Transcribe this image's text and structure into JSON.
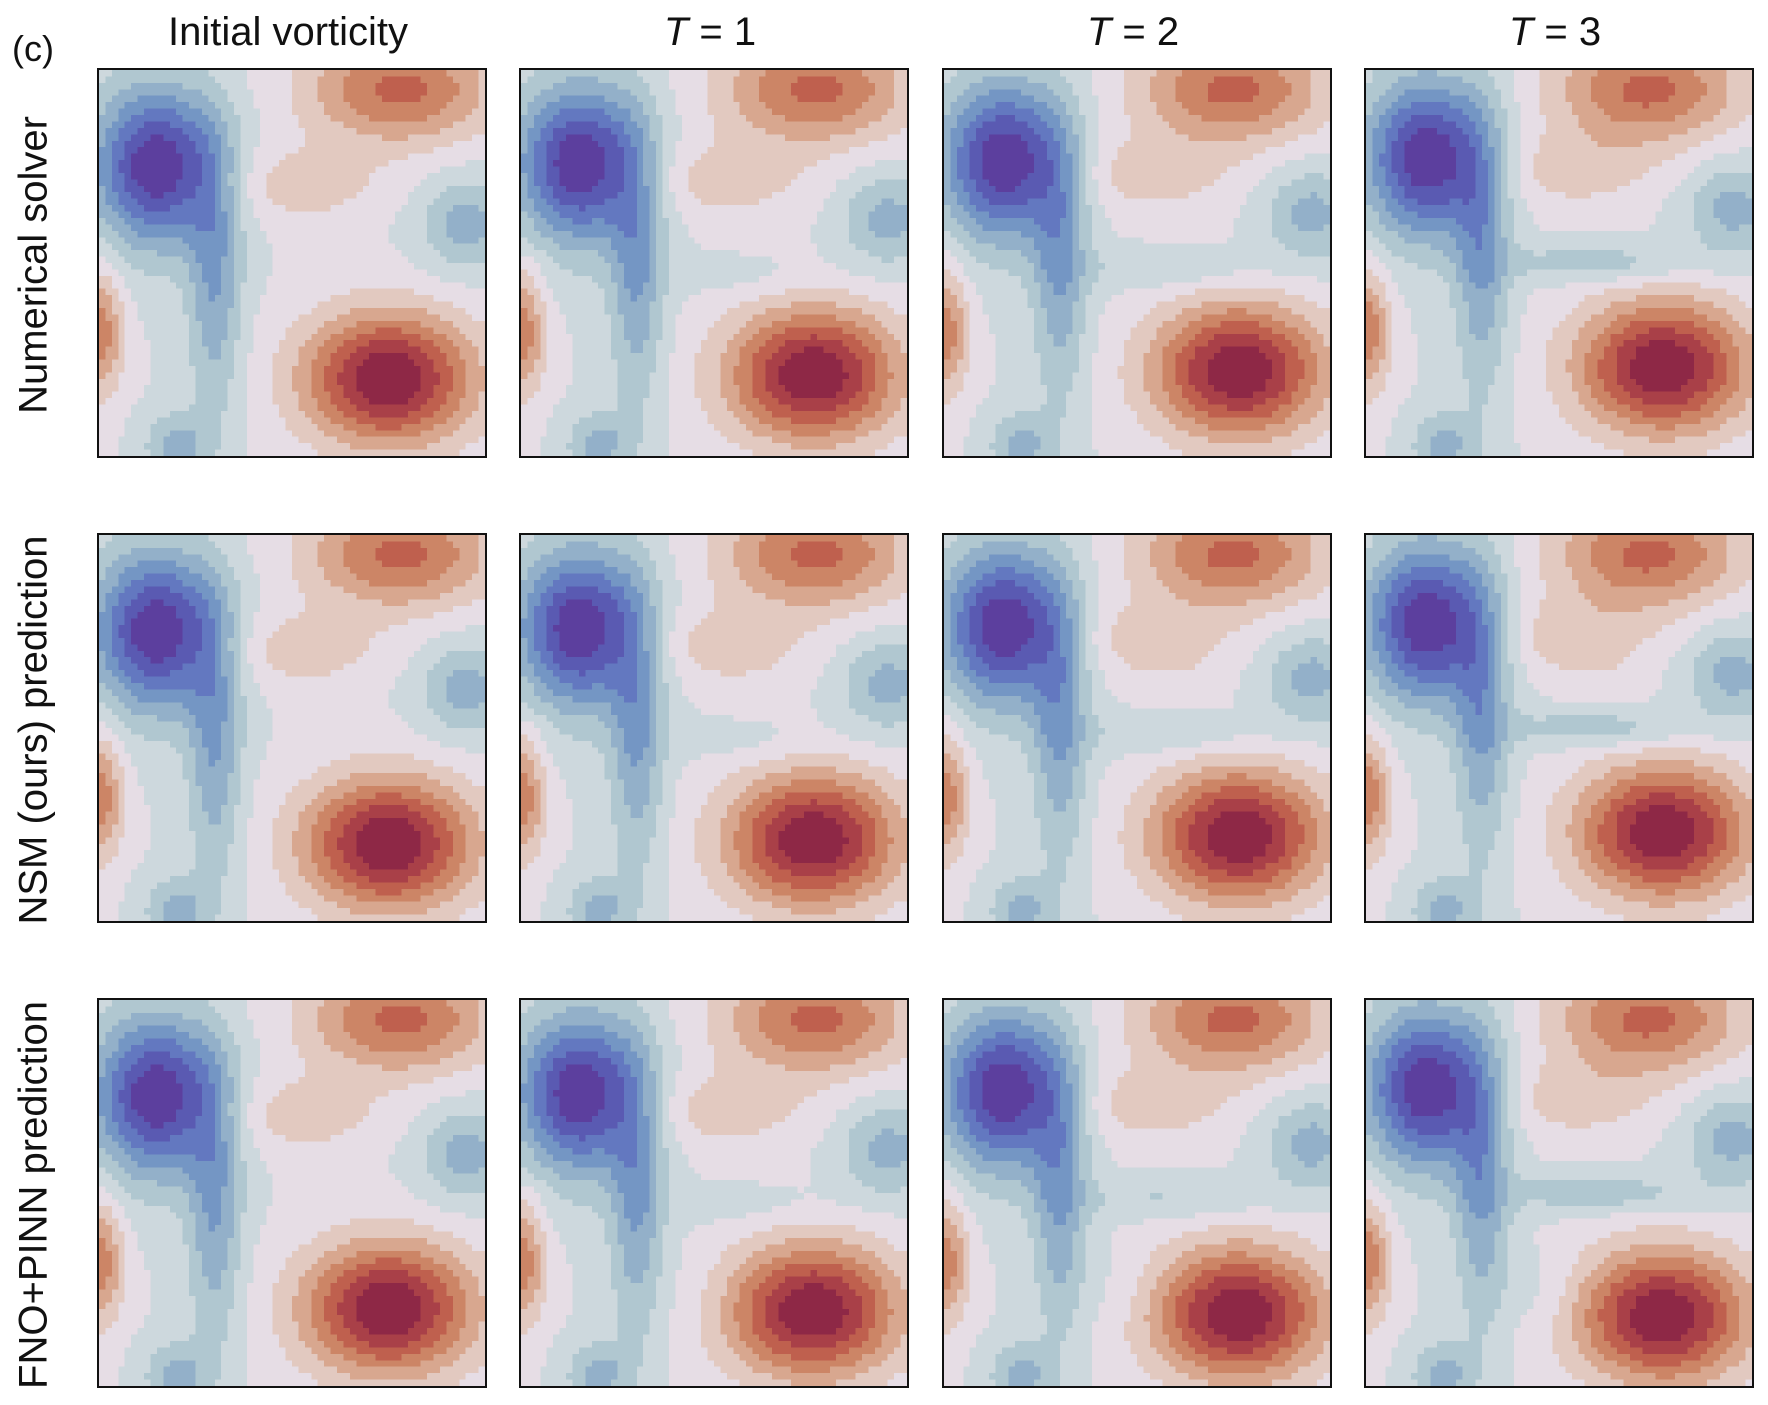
{
  "panel_label": "(c)",
  "columns": [
    {
      "prefix": "Initial vorticity",
      "italic": "",
      "suffix": ""
    },
    {
      "prefix": "",
      "italic": "T",
      "suffix": " = 1"
    },
    {
      "prefix": "",
      "italic": "T",
      "suffix": " = 2"
    },
    {
      "prefix": "",
      "italic": "T",
      "suffix": " = 3"
    }
  ],
  "rows": [
    "Numerical solver",
    "NSM (ours) prediction",
    "FNO+PINN prediction"
  ],
  "colors": {
    "levels": [
      "#5c3f9e",
      "#5a5ab2",
      "#6378c0",
      "#7496c4",
      "#93b0c9",
      "#b0c7d0",
      "#cdd8dd",
      "#e6dde5",
      "#e2c9c0",
      "#d8a78f",
      "#cc8566",
      "#bf604e",
      "#a94048",
      "#8e2846"
    ]
  },
  "chart_data": {
    "type": "heatmap",
    "title": "",
    "grid": false,
    "legend": "none",
    "x_categories": [
      "Initial vorticity",
      "T = 1",
      "T = 2",
      "T = 3"
    ],
    "y_categories": [
      "Numerical solver",
      "NSM (ours) prediction",
      "FNO+PINN prediction"
    ],
    "colormap": "diverging blue–red contour (14 levels)",
    "time_steps": [
      0,
      1,
      2,
      3
    ]
  }
}
